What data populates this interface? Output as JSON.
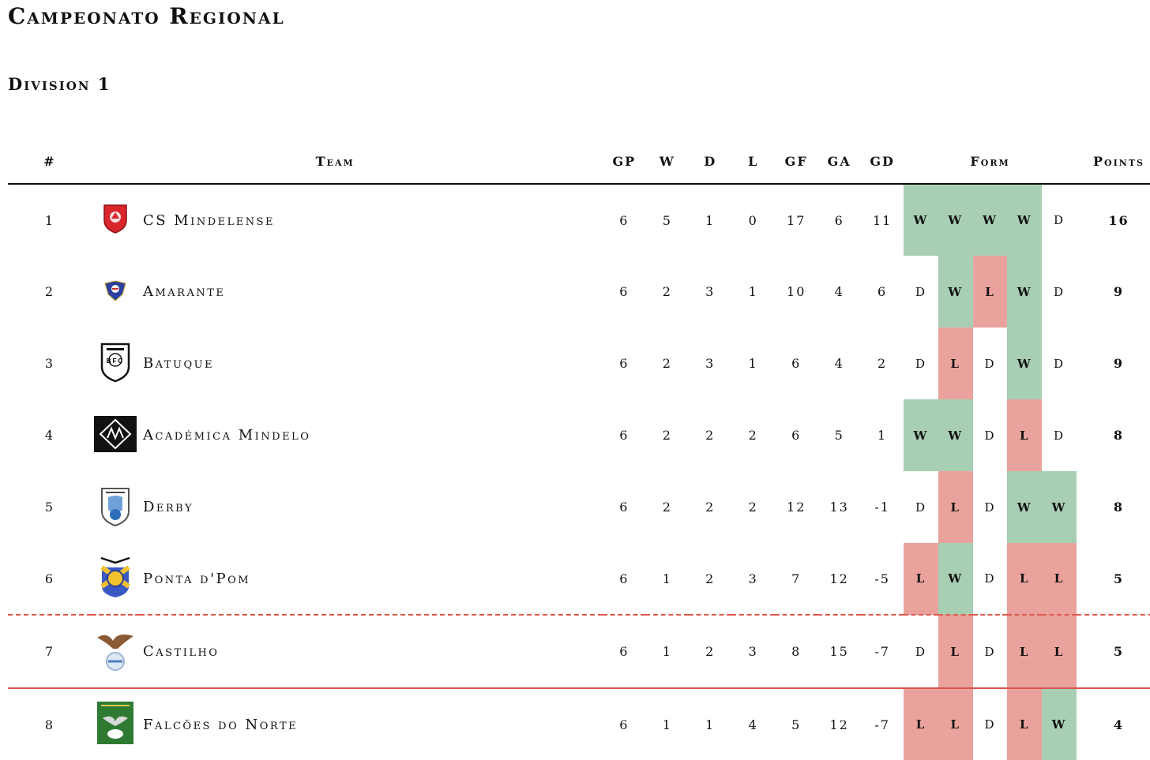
{
  "title": "Campeonato Regional",
  "subtitle": "Division 1",
  "columns": {
    "rank": "#",
    "team": "Team",
    "gp": "GP",
    "w": "W",
    "d": "D",
    "l": "L",
    "gf": "GF",
    "ga": "GA",
    "gd": "GD",
    "form": "Form",
    "points": "Points"
  },
  "colors": {
    "win": "#a8cfb3",
    "loss": "#eaa29c",
    "relegation_line": "#d9534f"
  },
  "rows": [
    {
      "rank": "1",
      "team": "CS Mindelense",
      "crest": "cs-mindelense-crest",
      "gp": "6",
      "w": "5",
      "d": "1",
      "l": "0",
      "gf": "17",
      "ga": "6",
      "gd": "11",
      "form": [
        "W",
        "W",
        "W",
        "W",
        "D"
      ],
      "points": "16"
    },
    {
      "rank": "2",
      "team": "Amarante",
      "crest": "amarante-crest",
      "gp": "6",
      "w": "2",
      "d": "3",
      "l": "1",
      "gf": "10",
      "ga": "4",
      "gd": "6",
      "form": [
        "D",
        "W",
        "L",
        "W",
        "D"
      ],
      "points": "9"
    },
    {
      "rank": "3",
      "team": "Batuque",
      "crest": "batuque-crest",
      "gp": "6",
      "w": "2",
      "d": "3",
      "l": "1",
      "gf": "6",
      "ga": "4",
      "gd": "2",
      "form": [
        "D",
        "L",
        "D",
        "W",
        "D"
      ],
      "points": "9"
    },
    {
      "rank": "4",
      "team": "Académica Mindelo",
      "crest": "academica-mindelo-crest",
      "gp": "6",
      "w": "2",
      "d": "2",
      "l": "2",
      "gf": "6",
      "ga": "5",
      "gd": "1",
      "form": [
        "W",
        "W",
        "D",
        "L",
        "D"
      ],
      "points": "8"
    },
    {
      "rank": "5",
      "team": "Derby",
      "crest": "derby-crest",
      "gp": "6",
      "w": "2",
      "d": "2",
      "l": "2",
      "gf": "12",
      "ga": "13",
      "gd": "-1",
      "form": [
        "D",
        "L",
        "D",
        "W",
        "W"
      ],
      "points": "8"
    },
    {
      "rank": "6",
      "team": "Ponta d'Pom",
      "crest": "ponta-dpom-crest",
      "gp": "6",
      "w": "1",
      "d": "2",
      "l": "3",
      "gf": "7",
      "ga": "12",
      "gd": "-5",
      "form": [
        "L",
        "W",
        "D",
        "L",
        "L"
      ],
      "points": "5"
    },
    {
      "rank": "7",
      "team": "Castilho",
      "crest": "castilho-crest",
      "gp": "6",
      "w": "1",
      "d": "2",
      "l": "3",
      "gf": "8",
      "ga": "15",
      "gd": "-7",
      "form": [
        "D",
        "L",
        "D",
        "L",
        "L"
      ],
      "points": "5"
    },
    {
      "rank": "8",
      "team": "Falcões do Norte",
      "crest": "falcoes-do-norte-crest",
      "gp": "6",
      "w": "1",
      "d": "1",
      "l": "4",
      "gf": "5",
      "ga": "12",
      "gd": "-7",
      "form": [
        "L",
        "L",
        "D",
        "L",
        "W"
      ],
      "points": "4"
    }
  ]
}
